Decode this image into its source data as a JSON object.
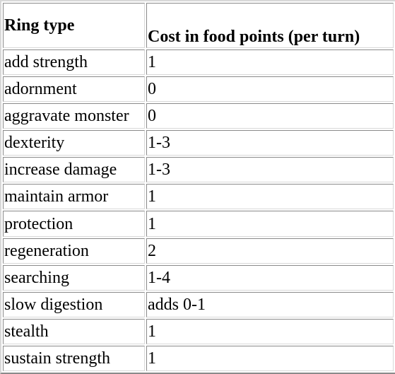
{
  "table": {
    "headers": [
      "Ring type",
      "Cost in food points (per turn)"
    ],
    "rows": [
      [
        "add strength",
        "1"
      ],
      [
        "adornment",
        "0"
      ],
      [
        "aggravate monster",
        "0"
      ],
      [
        "dexterity",
        "1-3"
      ],
      [
        "increase damage",
        "1-3"
      ],
      [
        "maintain armor",
        "1"
      ],
      [
        "protection",
        "1"
      ],
      [
        "regeneration",
        "2"
      ],
      [
        "searching",
        "1-4"
      ],
      [
        "slow digestion",
        "adds 0-1"
      ],
      [
        "stealth",
        "1"
      ],
      [
        "sustain strength",
        "1"
      ]
    ]
  }
}
